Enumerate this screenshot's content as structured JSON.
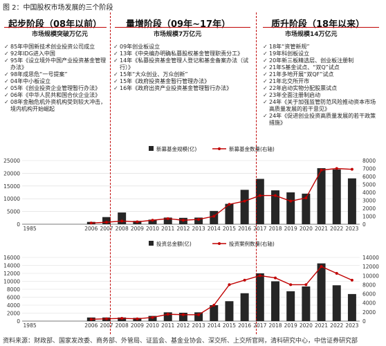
{
  "figure_title": "图 2：中国股权市场发展的三个阶段",
  "source": "资料来源：财政部、国家发改委、商务部、外管局、证监会、基金业协会、深交所、上交所官网，清科研究中心，中信证券研究部",
  "stages": [
    {
      "title": "起步阶段（08年以前）",
      "market_size": "市场规模突破万亿元",
      "events": [
        "85年中国新技术创业投资公司成立",
        "92年IDG进入中国",
        "95年《设立境外中国产业投资基金管理办法》",
        "98年成思危“一号提案”",
        "04年中小板设立",
        "05年《创业投资企业管理暂行办法》",
        "06年《中华人民共和国合伙企业法》",
        "08年金融危机外资机构受到较大冲击，境内机构开始崛起"
      ]
    },
    {
      "title": "量增阶段（09年~17年）",
      "market_size": "市场规模7万亿元",
      "events": [
        "09年创业板设立",
        "13年《中央编办明确私募股权基金管理职责分工》",
        "14年《私募投资基金管理人登记和基金备案办法（试行）》",
        "15年“大众创业、万众创新”",
        "15年《政府投资基金暂行管理办法》",
        "16年《政府出资产业投资基金管理暂行办法》"
      ]
    },
    {
      "title": "质升阶段（18年以来）",
      "market_size": "市场规模14万亿元",
      "events": [
        "18年“资管新规”",
        "19年科创板设立",
        "20年新三板精选层、创业板注册制",
        "21年S基金试点、“双Q”试点",
        "21年多地开展“双QF”试点",
        "21年北交所开市",
        "22年启动实物分配股票试点",
        "23年全面注册制启动",
        "24年《关于加强监管防范风险推动资本市场高质量发展的若干意见》",
        "24年《促进创业投资高质量发展的若干政策措施》"
      ]
    }
  ],
  "chart_data": [
    {
      "type": "bar",
      "categories": [
        "1985",
        "",
        "",
        "",
        "2006",
        "2007",
        "2008",
        "2009",
        "2010",
        "2011",
        "2012",
        "2013",
        "2014",
        "2015",
        "2016",
        "2017",
        "2018",
        "2019",
        "2020",
        "2021",
        "2022",
        "2023"
      ],
      "series": [
        {
          "name": "新募基金规模(亿)",
          "type": "bar",
          "axis": "left",
          "values": [
            0,
            0,
            0,
            0,
            900,
            2800,
            4600,
            1300,
            1800,
            2600,
            2500,
            2600,
            5200,
            8000,
            13500,
            17800,
            13300,
            12500,
            12000,
            22000,
            21500,
            18000
          ]
        },
        {
          "name": "新募基金数量(右轴)",
          "type": "line",
          "axis": "right",
          "values": [
            null,
            null,
            null,
            null,
            150,
            250,
            400,
            300,
            500,
            700,
            500,
            600,
            1000,
            2500,
            2900,
            3600,
            3600,
            2900,
            3300,
            6800,
            7000,
            6900
          ]
        }
      ],
      "y_left_ticks": [
        0,
        5000,
        10000,
        15000,
        20000,
        25000
      ],
      "y_right_ticks": [
        0,
        1000,
        2000,
        3000,
        4000,
        5000,
        6000,
        7000,
        8000
      ],
      "ylim_left": [
        0,
        25000
      ],
      "ylim_right": [
        0,
        8000
      ],
      "legend_position": "top-center"
    },
    {
      "type": "bar",
      "categories": [
        "1985",
        "",
        "",
        "",
        "2006",
        "2007",
        "2008",
        "2009",
        "2010",
        "2011",
        "2012",
        "2013",
        "2014",
        "2015",
        "2016",
        "2017",
        "2018",
        "2019",
        "2020",
        "2021",
        "2022",
        "2023"
      ],
      "series": [
        {
          "name": "投资总金额(亿)",
          "type": "bar",
          "axis": "left",
          "values": [
            0,
            0,
            0,
            0,
            900,
            900,
            900,
            800,
            1300,
            2200,
            2100,
            2200,
            4000,
            5000,
            7000,
            12000,
            10000,
            7500,
            8700,
            14500,
            9000,
            6800
          ]
        },
        {
          "name": "投资案例数量(右轴)",
          "type": "line",
          "axis": "right",
          "values": [
            null,
            null,
            null,
            null,
            400,
            500,
            600,
            500,
            800,
            1500,
            1400,
            1400,
            3500,
            8000,
            9000,
            10000,
            9500,
            8000,
            8000,
            12000,
            10500,
            9000
          ]
        }
      ],
      "y_left_ticks": [
        0,
        2000,
        4000,
        6000,
        8000,
        10000,
        12000,
        14000,
        16000
      ],
      "y_right_ticks": [
        0,
        2000,
        4000,
        6000,
        8000,
        10000,
        12000,
        14000
      ],
      "ylim_left": [
        0,
        16000
      ],
      "ylim_right": [
        0,
        14000
      ],
      "legend_position": "top-center"
    }
  ],
  "colors": {
    "bar": "#262626",
    "line": "#c00000",
    "divider": "#c00000",
    "grid": "#d9d9d9"
  }
}
